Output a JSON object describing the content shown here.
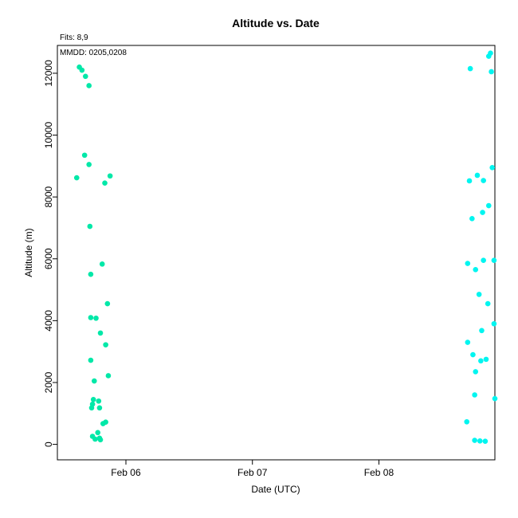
{
  "chart_data": {
    "type": "scatter",
    "title": "Altitude  vs. Date",
    "xlabel": "Date (UTC)",
    "ylabel": "Altitude (m)",
    "notes": {
      "fits": "Fits: 8,9",
      "mmdd": "MMDD: 0205,0208"
    },
    "x_domain": [
      "2025-02-05T11:00:00Z",
      "2025-02-08T22:00:00Z"
    ],
    "ylim": [
      -500,
      12900
    ],
    "x_ticks": [
      {
        "label": "Feb 06",
        "value": "2025-02-06T00:00:00Z"
      },
      {
        "label": "Feb 07",
        "value": "2025-02-07T00:00:00Z"
      },
      {
        "label": "Feb 08",
        "value": "2025-02-08T00:00:00Z"
      }
    ],
    "y_ticks": [
      0,
      2000,
      4000,
      6000,
      8000,
      10000,
      12000
    ],
    "series": [
      {
        "color": "#00E8A8",
        "points": [
          {
            "x": "2025-02-05T15:10:00Z",
            "y": 12200
          },
          {
            "x": "2025-02-05T15:40:00Z",
            "y": 12100
          },
          {
            "x": "2025-02-05T16:20:00Z",
            "y": 11900
          },
          {
            "x": "2025-02-05T17:00:00Z",
            "y": 11600
          },
          {
            "x": "2025-02-05T16:10:00Z",
            "y": 9350
          },
          {
            "x": "2025-02-05T17:00:00Z",
            "y": 9050
          },
          {
            "x": "2025-02-05T14:40:00Z",
            "y": 8620
          },
          {
            "x": "2025-02-05T21:00:00Z",
            "y": 8680
          },
          {
            "x": "2025-02-05T20:00:00Z",
            "y": 8450
          },
          {
            "x": "2025-02-05T17:10:00Z",
            "y": 7050
          },
          {
            "x": "2025-02-05T19:30:00Z",
            "y": 5830
          },
          {
            "x": "2025-02-05T17:20:00Z",
            "y": 5500
          },
          {
            "x": "2025-02-05T20:30:00Z",
            "y": 4550
          },
          {
            "x": "2025-02-05T17:20:00Z",
            "y": 4100
          },
          {
            "x": "2025-02-05T18:20:00Z",
            "y": 4080
          },
          {
            "x": "2025-02-05T19:10:00Z",
            "y": 3600
          },
          {
            "x": "2025-02-05T20:10:00Z",
            "y": 3220
          },
          {
            "x": "2025-02-05T17:20:00Z",
            "y": 2720
          },
          {
            "x": "2025-02-05T20:40:00Z",
            "y": 2220
          },
          {
            "x": "2025-02-05T18:00:00Z",
            "y": 2050
          },
          {
            "x": "2025-02-05T17:50:00Z",
            "y": 1450
          },
          {
            "x": "2025-02-05T18:50:00Z",
            "y": 1400
          },
          {
            "x": "2025-02-05T17:40:00Z",
            "y": 1300
          },
          {
            "x": "2025-02-05T17:30:00Z",
            "y": 1180
          },
          {
            "x": "2025-02-05T19:00:00Z",
            "y": 1180
          },
          {
            "x": "2025-02-05T20:10:00Z",
            "y": 720
          },
          {
            "x": "2025-02-05T19:40:00Z",
            "y": 670
          },
          {
            "x": "2025-02-05T18:40:00Z",
            "y": 380
          },
          {
            "x": "2025-02-05T17:40:00Z",
            "y": 260
          },
          {
            "x": "2025-02-05T18:10:00Z",
            "y": 170
          },
          {
            "x": "2025-02-05T19:00:00Z",
            "y": 200
          },
          {
            "x": "2025-02-05T19:10:00Z",
            "y": 150
          }
        ]
      },
      {
        "color": "#00F5F0",
        "points": [
          {
            "x": "2025-02-08T17:20:00Z",
            "y": 12150
          },
          {
            "x": "2025-02-08T20:50:00Z",
            "y": 12550
          },
          {
            "x": "2025-02-08T21:10:00Z",
            "y": 12650
          },
          {
            "x": "2025-02-08T21:20:00Z",
            "y": 12050
          },
          {
            "x": "2025-02-08T21:30:00Z",
            "y": 8950
          },
          {
            "x": "2025-02-08T18:40:00Z",
            "y": 8700
          },
          {
            "x": "2025-02-08T17:10:00Z",
            "y": 8520
          },
          {
            "x": "2025-02-08T19:50:00Z",
            "y": 8530
          },
          {
            "x": "2025-02-08T20:50:00Z",
            "y": 7720
          },
          {
            "x": "2025-02-08T19:40:00Z",
            "y": 7500
          },
          {
            "x": "2025-02-08T17:40:00Z",
            "y": 7300
          },
          {
            "x": "2025-02-08T19:50:00Z",
            "y": 5950
          },
          {
            "x": "2025-02-08T21:50:00Z",
            "y": 5950
          },
          {
            "x": "2025-02-08T16:50:00Z",
            "y": 5850
          },
          {
            "x": "2025-02-08T18:20:00Z",
            "y": 5650
          },
          {
            "x": "2025-02-08T19:00:00Z",
            "y": 4850
          },
          {
            "x": "2025-02-08T20:40:00Z",
            "y": 4550
          },
          {
            "x": "2025-02-08T21:50:00Z",
            "y": 3900
          },
          {
            "x": "2025-02-08T19:30:00Z",
            "y": 3680
          },
          {
            "x": "2025-02-08T16:50:00Z",
            "y": 3300
          },
          {
            "x": "2025-02-08T17:50:00Z",
            "y": 2900
          },
          {
            "x": "2025-02-08T20:20:00Z",
            "y": 2750
          },
          {
            "x": "2025-02-08T19:20:00Z",
            "y": 2700
          },
          {
            "x": "2025-02-08T18:20:00Z",
            "y": 2350
          },
          {
            "x": "2025-02-08T18:10:00Z",
            "y": 1600
          },
          {
            "x": "2025-02-08T22:00:00Z",
            "y": 1480
          },
          {
            "x": "2025-02-08T16:40:00Z",
            "y": 730
          },
          {
            "x": "2025-02-08T18:10:00Z",
            "y": 130
          },
          {
            "x": "2025-02-08T19:10:00Z",
            "y": 110
          },
          {
            "x": "2025-02-08T20:10:00Z",
            "y": 100
          }
        ]
      }
    ]
  }
}
